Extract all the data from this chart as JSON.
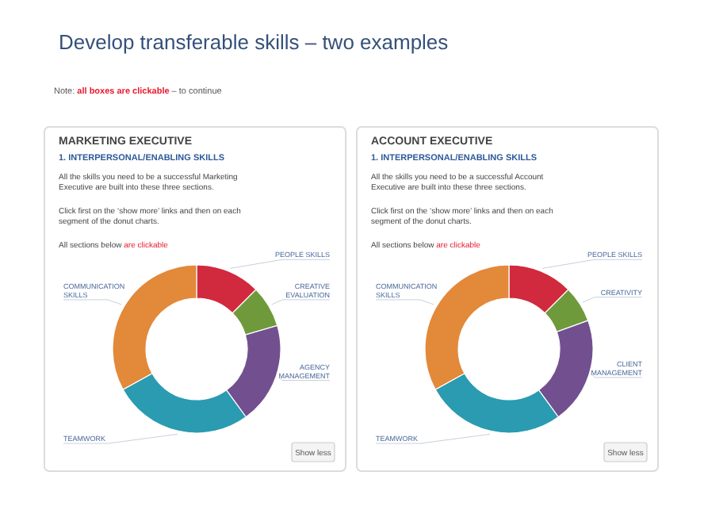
{
  "chart_data": [
    {
      "type": "other",
      "title": "Develop transferable skills – two examples",
      "annotations": [
        "Note:",
        "all boxes are clickable",
        "– to continue"
      ]
    },
    {
      "type": "donut",
      "title": "MARKETING EXECUTIVE",
      "subtitle": "1. INTERPERSONAL/ENABLING SKILLS",
      "categories": [
        "PEOPLE SKILLS",
        "CREATIVE EVALUATION",
        "AGENCY MANAGEMENT",
        "TEAMWORK",
        "COMMUNICATION SKILLS"
      ],
      "values": [
        12.5,
        8,
        19.5,
        27,
        33
      ],
      "colors": [
        "#d1293d",
        "#6f9a3c",
        "#72508f",
        "#2a9bb0",
        "#e2893a"
      ],
      "annotations": [
        "All the skills you need to be a successful Marketing Executive are built into these three sections.",
        "Click first on the ‘show more’ links and then on each segment of the donut charts.",
        "All sections below",
        "are clickable",
        "Show less"
      ]
    },
    {
      "type": "donut",
      "title": "ACCOUNT EXECUTIVE",
      "subtitle": "1. INTERPERSONAL/ENABLING SKILLS",
      "categories": [
        "PEOPLE SKILLS",
        "CREATIVITY",
        "CLIENT MANAGEMENT",
        "TEAMWORK",
        "COMMUNICATION SKILLS"
      ],
      "values": [
        12.5,
        7,
        20.5,
        27,
        33
      ],
      "colors": [
        "#d1293d",
        "#6f9a3c",
        "#72508f",
        "#2a9bb0",
        "#e2893a"
      ],
      "annotations": [
        "All the skills you need to be a successful Account Executive are built into these three sections.",
        "Click first on the ‘show more’ links and then on each segment of the donut charts.",
        "All sections below",
        "are clickable",
        "Show less"
      ]
    }
  ]
}
